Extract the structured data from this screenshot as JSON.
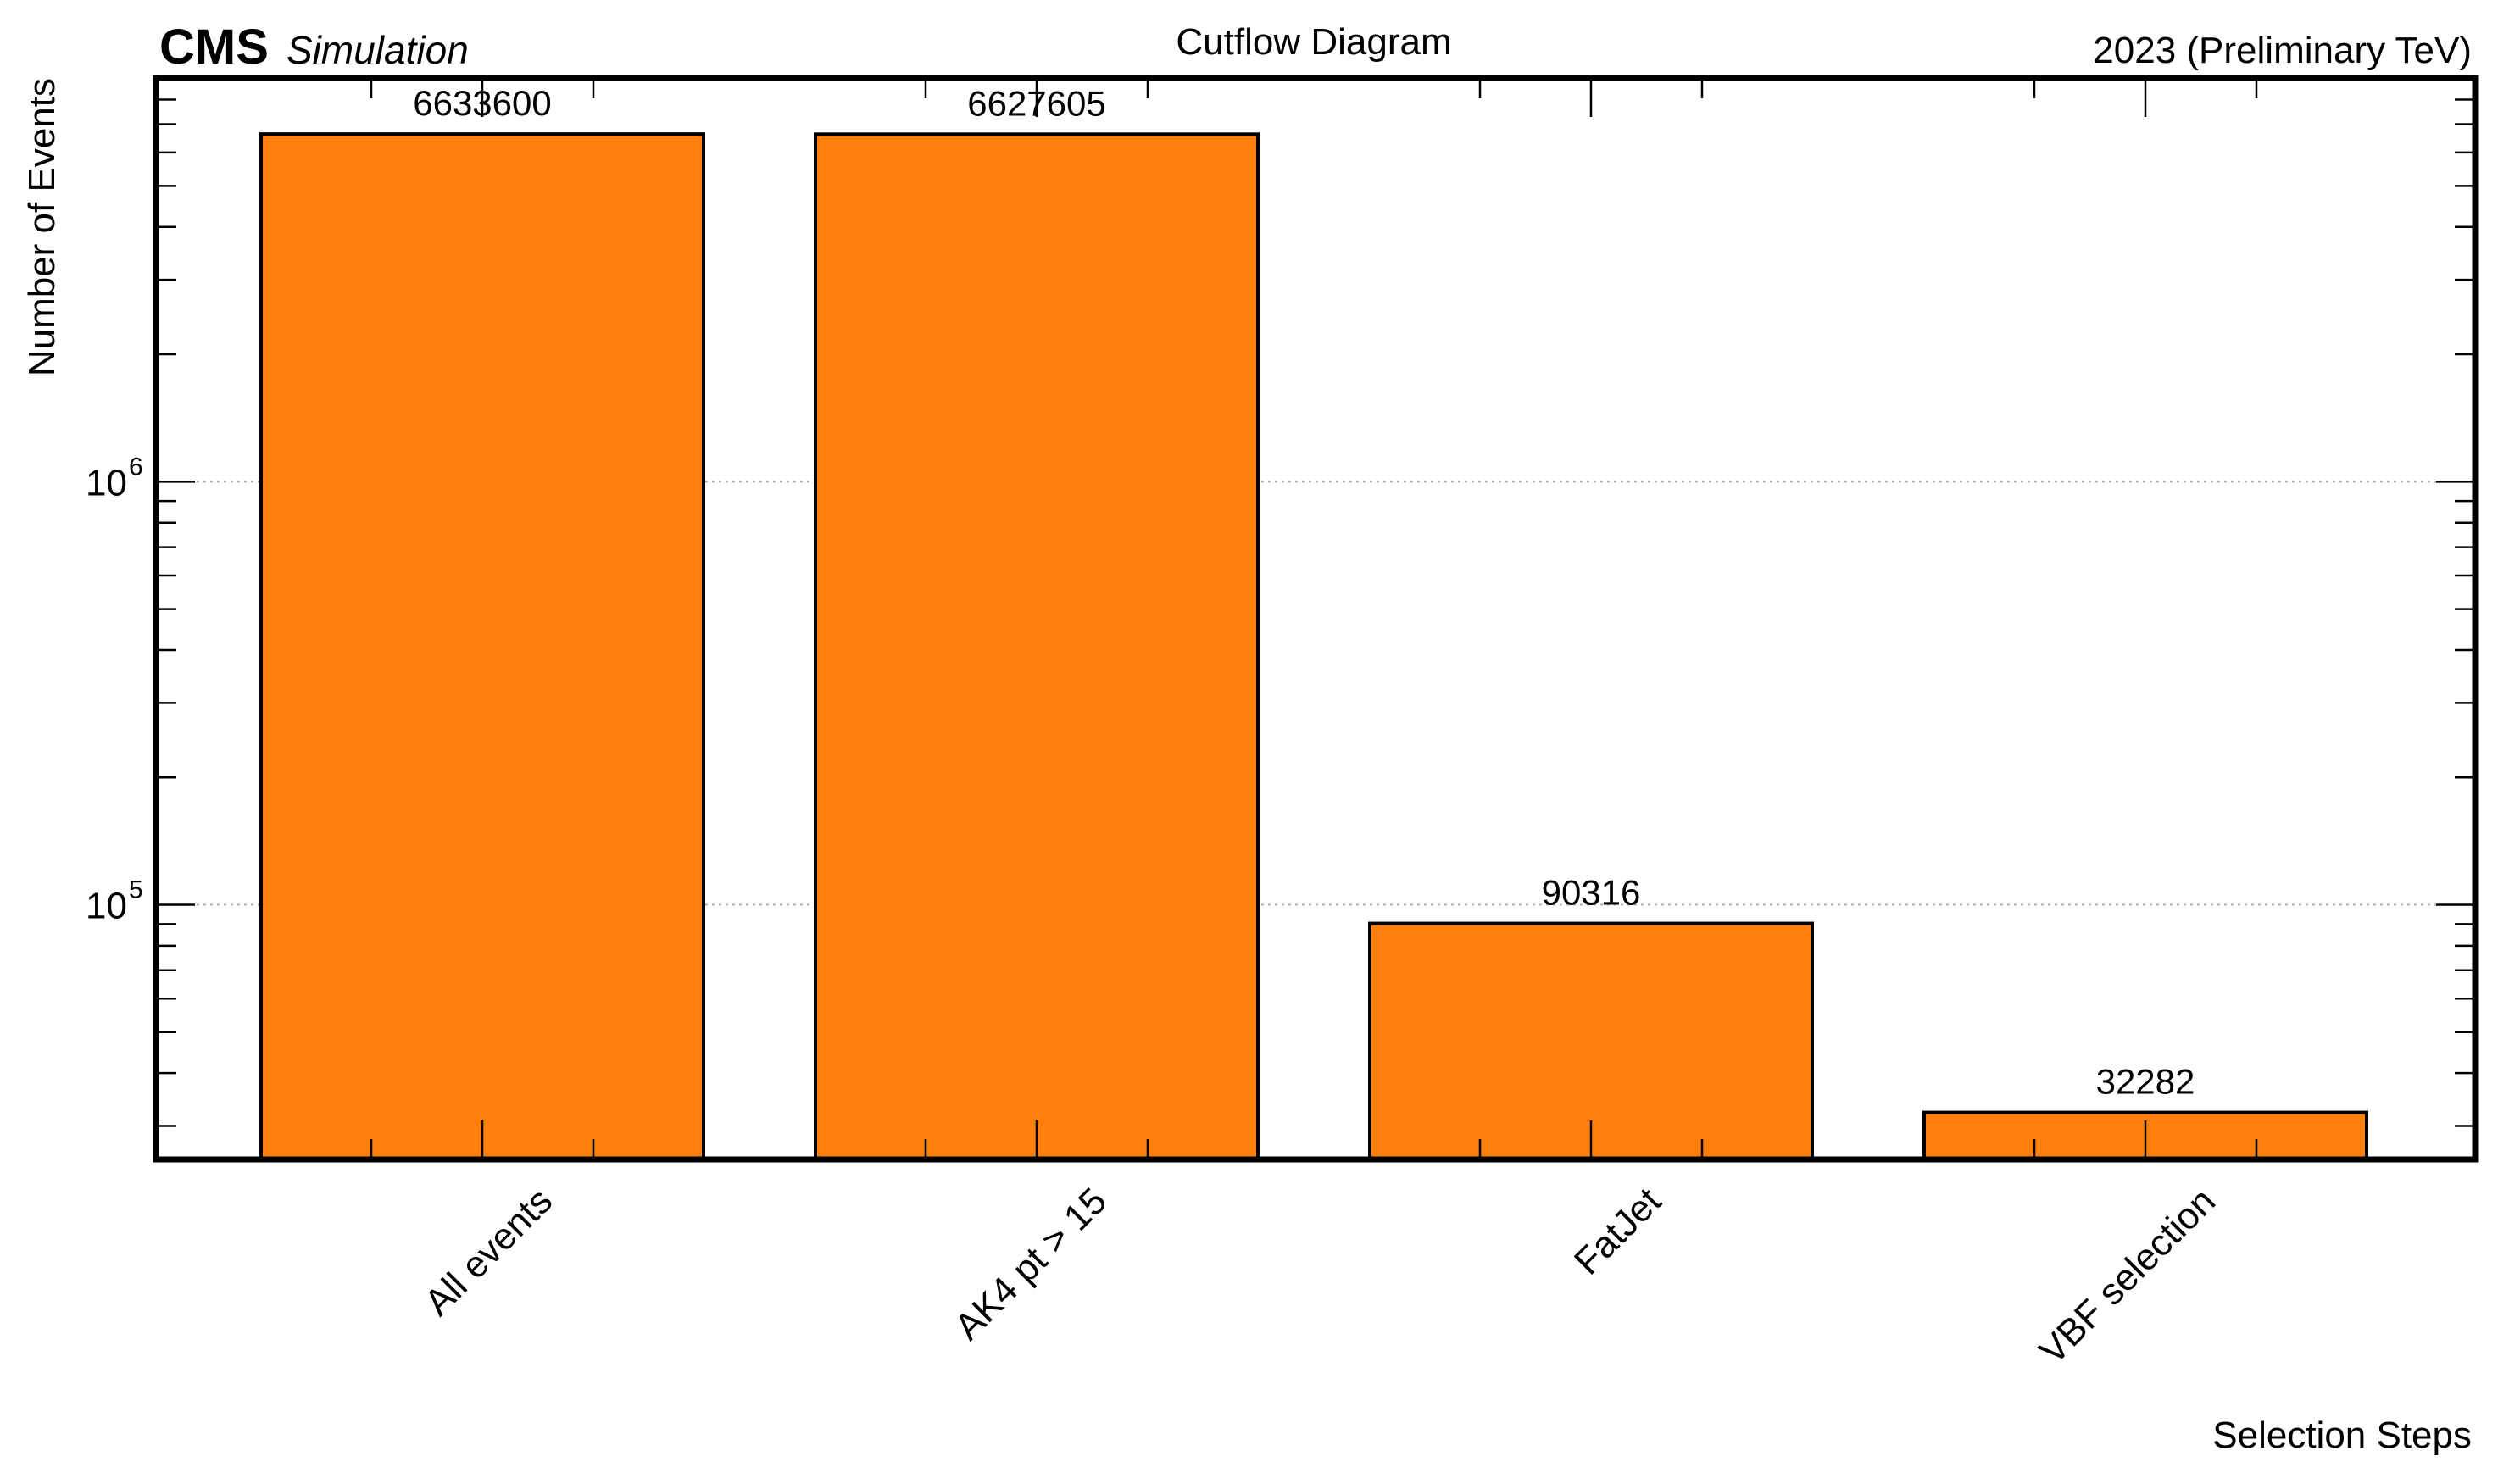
{
  "header": {
    "cms_label": "CMS",
    "sim_label": "Simulation",
    "right_label": "2023 (Preliminary TeV)"
  },
  "chart_data": {
    "type": "bar",
    "title": "Cutflow Diagram",
    "xlabel": "Selection Steps",
    "ylabel": "Number of Events",
    "yscale": "log",
    "ylim": [
      25000,
      9000000
    ],
    "grid": "horizontal",
    "bar_color": "#ff7f0e",
    "categories": [
      "All events",
      "AK4 pt > 15",
      "FatJet",
      "VBF selection"
    ],
    "values": [
      6633600,
      6627605,
      90316,
      32282
    ],
    "value_labels": [
      "6633600",
      "6627605",
      "90316",
      "32282"
    ],
    "yticks": [
      {
        "value": 100000,
        "base": "10",
        "exp": "5"
      },
      {
        "value": 1000000,
        "base": "10",
        "exp": "6"
      }
    ]
  }
}
